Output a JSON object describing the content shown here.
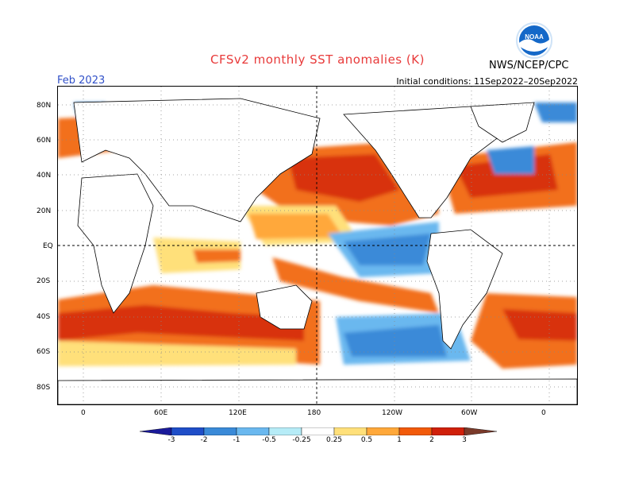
{
  "header": {
    "title": "CFSv2 monthly SST anomalies (K)",
    "month": "Feb 2023",
    "initial_conditions": "Initial conditions: 11Sep2022–20Sep2022",
    "agency": "NWS/NCEP/CPC",
    "logo_text": "NOAA"
  },
  "map": {
    "lat_labels": [
      "80N",
      "60N",
      "40N",
      "20N",
      "EQ",
      "20S",
      "40S",
      "60S",
      "80S"
    ],
    "lon_labels": [
      "0",
      "60E",
      "120E",
      "180",
      "120W",
      "60W",
      "0"
    ]
  },
  "legend": {
    "labels": [
      "-3",
      "-2",
      "-1",
      "-0.5",
      "-0.25",
      "0.25",
      "0.5",
      "1",
      "2",
      "3"
    ],
    "colors": [
      "#1a1a9a",
      "#1f4ec8",
      "#3a8ad8",
      "#6ab8ef",
      "#b6ecf7",
      "#ffffff",
      "#ffe07a",
      "#ffa83a",
      "#f25a0a",
      "#d0200a",
      "#a01010",
      "#7a3a2a"
    ]
  },
  "colors": {
    "title": "#e83a3a",
    "month": "#3050c8"
  }
}
